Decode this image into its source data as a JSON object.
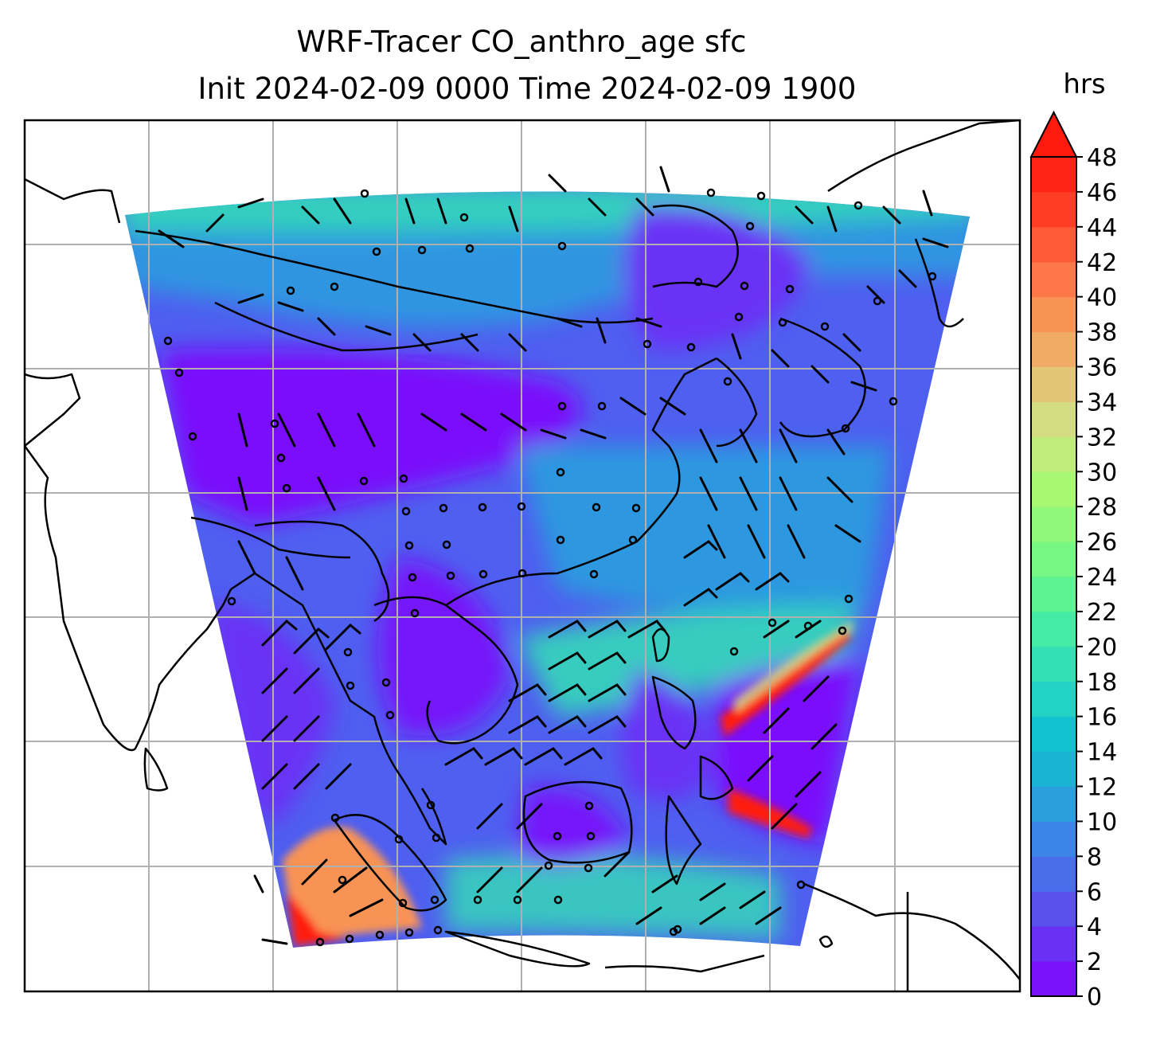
{
  "title_line1": "WRF-Tracer CO_anthro_age sfc",
  "title_line2": "Init 2024-02-09 0000 Time 2024-02-09 1900",
  "colorbar": {
    "unit": "hrs",
    "extend": "max",
    "ticks": [
      "0",
      "2",
      "4",
      "6",
      "8",
      "10",
      "12",
      "14",
      "16",
      "18",
      "20",
      "22",
      "24",
      "26",
      "28",
      "30",
      "32",
      "34",
      "36",
      "38",
      "40",
      "42",
      "44",
      "46",
      "48"
    ],
    "colors": [
      "#7a11fb",
      "#6a31f5",
      "#5a50ee",
      "#4a6deb",
      "#3a85e6",
      "#2a9fdd",
      "#1ab3d6",
      "#12c2d0",
      "#22d2c5",
      "#33dfb5",
      "#44eba4",
      "#5df394",
      "#76f784",
      "#8ffa79",
      "#a8f874",
      "#c0ec7c",
      "#d4dc82",
      "#e3c576",
      "#f0ab64",
      "#f89355",
      "#fd7748",
      "#ff5a36",
      "#ff3d24",
      "#ff2415"
    ],
    "extend_color": "#ff1a0d"
  },
  "map": {
    "grid": "on",
    "field_colors": {
      "low": "#7a11fb",
      "mid_low": "#4f5ff0",
      "mid": "#2a9fdd",
      "mid_high": "#33dfb5",
      "high_orange": "#f89355",
      "high_red": "#ff1a0d"
    }
  }
}
